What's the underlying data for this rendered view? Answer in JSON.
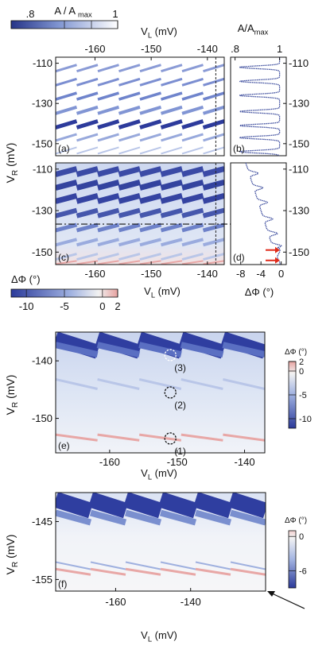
{
  "colors": {
    "blue_dark": "#2b3a9a",
    "blue_mid": "#6f86cc",
    "blue_light": "#d6e0f3",
    "pink": "#e8a7a6",
    "curve": "#3a4a9c",
    "arrow_red": "#e02a1a"
  },
  "chart_data": [
    {
      "panel": "(a)",
      "type": "heatmap",
      "colorbar": {
        "label_parts": [
          "A / A",
          "max"
        ],
        "ticks": [
          ".8",
          "1"
        ],
        "range": [
          0.8,
          1
        ]
      },
      "x_axis_top": {
        "label": "V",
        "label_sub": "L",
        "label_unit": " (mV)",
        "ticks": [
          -160,
          -150,
          -140
        ],
        "range": [
          -167,
          -137
        ]
      },
      "y_axis": {
        "label": "V",
        "label_sub": "R",
        "label_unit": " (mV)",
        "ticks": [
          -110,
          -130,
          -150
        ],
        "range": [
          -156,
          -107
        ]
      },
      "ridge_lines": 8,
      "dashed_vertical_at": -138.5
    },
    {
      "panel": "(b)",
      "type": "line",
      "x_axis_top": {
        "label": "A/A",
        "label_sub": "max",
        "ticks": [
          ".8",
          "1"
        ],
        "range": [
          0.78,
          1.03
        ]
      },
      "y_axis_right": {
        "ticks": [
          -110,
          -130,
          -150
        ],
        "range": [
          -156,
          -107
        ]
      },
      "dip_centers": [
        -112,
        -119,
        -126,
        -134,
        -141,
        -147,
        -154
      ],
      "dip_minimum": 0.82
    },
    {
      "panel": "(c)",
      "type": "heatmap",
      "colorbar": {
        "label": "ΔΦ (°)",
        "ticks": [
          -10,
          -5,
          0,
          2
        ],
        "range": [
          -12,
          2
        ]
      },
      "x_axis_bottom": {
        "label": "V",
        "label_sub": "L",
        "label_unit": " (mV)",
        "ticks": [
          -160,
          -150,
          -140
        ],
        "range": [
          -167,
          -137
        ]
      },
      "y_axis": {
        "ticks": [
          -110,
          -130,
          -150
        ],
        "range": [
          -156,
          -107
        ]
      },
      "dashdot_horizontal_at": -136.5,
      "dashed_vertical_at": -138.5
    },
    {
      "panel": "(d)",
      "type": "line",
      "x_axis_bottom": {
        "label": "ΔΦ (°)",
        "ticks": [
          -8,
          -4,
          0
        ],
        "range": [
          -10,
          1
        ]
      },
      "y_axis_right": {
        "ticks": [
          -110,
          -130,
          -150
        ],
        "range": [
          -156,
          -107
        ]
      },
      "dip_centers": [
        -112,
        -119,
        -126,
        -134,
        -141,
        -147
      ],
      "arrows_at": [
        -149,
        -154
      ]
    },
    {
      "panel": "(e)",
      "type": "heatmap",
      "colorbar": {
        "label": "ΔΦ (°)",
        "ticks": [
          2,
          0,
          -5,
          -10
        ],
        "range": [
          -12,
          2
        ]
      },
      "x_axis": {
        "label": "V",
        "label_sub": "L",
        "label_unit": " (mV)",
        "ticks": [
          -160,
          -150,
          -140
        ],
        "range": [
          -168,
          -137
        ]
      },
      "y_axis": {
        "label": "V",
        "label_sub": "R",
        "label_unit": " (mV)",
        "ticks": [
          -140,
          -150
        ],
        "range": [
          -156,
          -135
        ]
      },
      "markers": [
        {
          "label": "(1)",
          "x": -151,
          "y": -153.5
        },
        {
          "label": "(2)",
          "x": -151,
          "y": -145.5
        },
        {
          "label": "(3)",
          "x": -151,
          "y": -139
        }
      ]
    },
    {
      "panel": "(f)",
      "type": "heatmap",
      "colorbar": {
        "label": "ΔΦ (°)",
        "ticks": [
          0,
          -6
        ],
        "range": [
          -9,
          1
        ]
      },
      "x_axis": {
        "label": "V",
        "label_sub": "L",
        "label_unit": " (mV)",
        "ticks": [
          -160,
          -140
        ],
        "range": [
          -176,
          -120
        ]
      },
      "y_axis": {
        "label": "V",
        "label_sub": "R",
        "label_unit": " (mV)",
        "ticks": [
          -145,
          -155
        ],
        "range": [
          -157,
          -140
        ]
      }
    }
  ]
}
